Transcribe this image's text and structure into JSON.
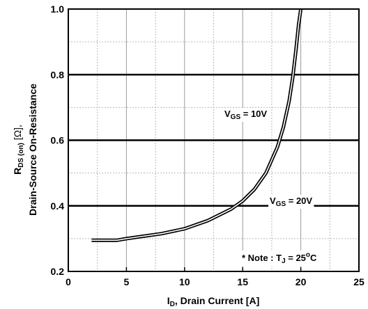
{
  "chart_data": {
    "type": "line",
    "xlabel": {
      "main": "I",
      "sub": "D",
      "rest": ", Drain Current [A]"
    },
    "ylabel": {
      "line1": {
        "main": "R",
        "sub": "DS (on)",
        "rest": " [Ω],"
      },
      "line2": "Drain-Source On-Resistance"
    },
    "xlim": [
      0,
      25
    ],
    "ylim": [
      0.2,
      1.0
    ],
    "x_ticks": [
      "0",
      "5",
      "10",
      "15",
      "20",
      "25"
    ],
    "y_ticks": [
      "0.2",
      "0.4",
      "0.6",
      "0.8",
      "1.0"
    ],
    "grid": true,
    "series": [
      {
        "x": [
          2.0,
          3.0,
          4.2,
          5.0,
          6.0,
          8.0,
          10.0,
          12.0,
          14.0,
          15.0,
          16.0,
          17.0,
          18.0,
          18.5,
          19.0,
          19.3,
          19.6,
          19.8,
          20.0
        ],
        "y": [
          0.295,
          0.295,
          0.295,
          0.3,
          0.305,
          0.315,
          0.33,
          0.355,
          0.39,
          0.415,
          0.45,
          0.5,
          0.58,
          0.64,
          0.72,
          0.79,
          0.88,
          0.95,
          1.0
        ]
      }
    ],
    "annotations": [
      {
        "main": "V",
        "sub": "GS",
        "rest": " = 10V"
      },
      {
        "main": "V",
        "sub": "GS",
        "rest": " = 20V"
      },
      {
        "text": "* Note : T",
        "sub": "J",
        "rest": " = 25",
        "sup": "o",
        "end": "C"
      }
    ]
  }
}
